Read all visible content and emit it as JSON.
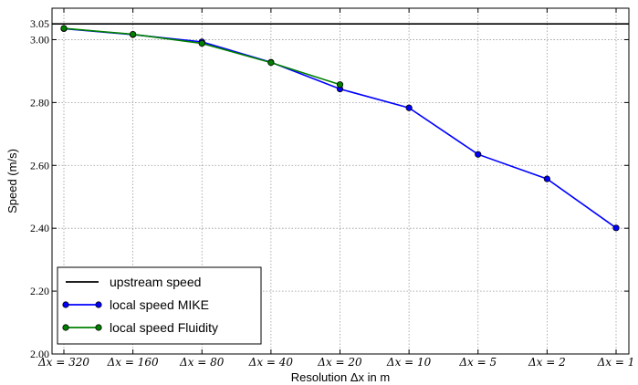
{
  "chart_data": {
    "type": "line",
    "categories": [
      "Δx = 320",
      "Δx = 160",
      "Δx = 80",
      "Δx = 40",
      "Δx = 20",
      "Δx = 10",
      "Δx = 5",
      "Δx = 2",
      "Δx = 1"
    ],
    "xlabel": "Resolution Δx in m",
    "ylabel": "Speed (m/s)",
    "ylim": [
      2.0,
      3.1
    ],
    "yticks": [
      {
        "value": 2.0,
        "label": "2.00"
      },
      {
        "value": 2.2,
        "label": "2.20"
      },
      {
        "value": 2.4,
        "label": "2.40"
      },
      {
        "value": 2.6,
        "label": "2.60"
      },
      {
        "value": 2.8,
        "label": "2.80"
      },
      {
        "value": 3.0,
        "label": "3.00"
      },
      {
        "value": 3.05,
        "label": "3.05"
      }
    ],
    "grid": true,
    "legend_position": "bottom-left",
    "reference_line": {
      "name": "upstream speed",
      "value": 3.05,
      "color": "#000000"
    },
    "series": [
      {
        "name": "local speed MIKE",
        "color": "#0000ff",
        "values": [
          3.035,
          3.016,
          2.993,
          2.928,
          2.843,
          2.783,
          2.635,
          2.557,
          2.401
        ]
      },
      {
        "name": "local speed Fluidity",
        "color": "#008000",
        "values": [
          3.036,
          3.017,
          2.988,
          2.927,
          2.857,
          null,
          null,
          null,
          null
        ]
      }
    ]
  }
}
